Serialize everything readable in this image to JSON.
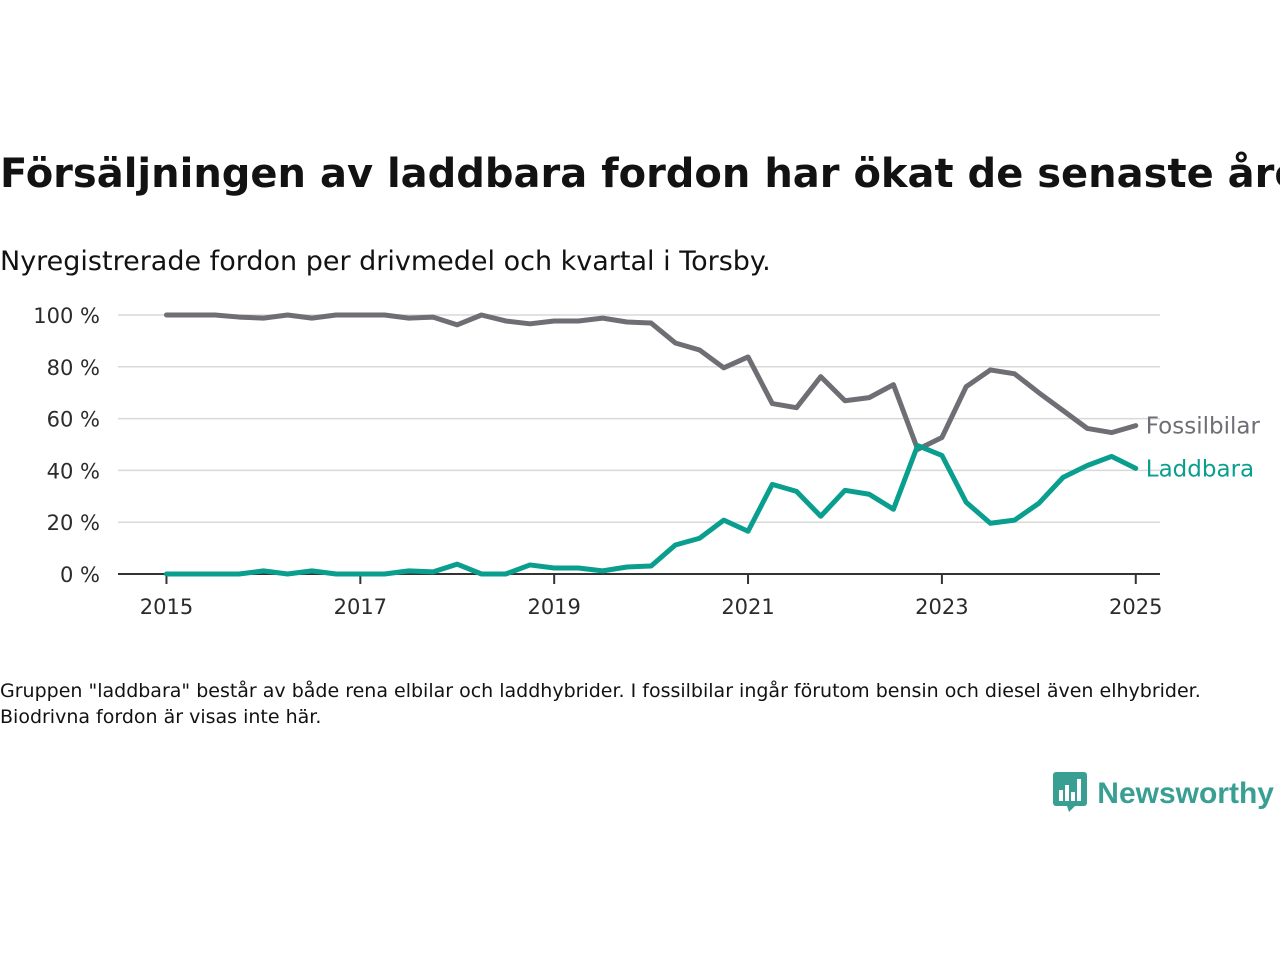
{
  "title": "Försäljningen av laddbara fordon har ökat de senaste åren",
  "subtitle": "Nyregistrerade fordon per drivmedel och kvartal i Torsby.",
  "footnote": "Gruppen \"laddbara\" består av både rena elbilar och laddhybrider. I fossilbilar ingår förutom bensin och diesel även elhybrider. Biodrivna fordon är visas inte här.",
  "brand": {
    "name": "Newsworthy",
    "logo_icon": "bar-chart-speech-bubble-icon",
    "color": "#3a9f93"
  },
  "chart_data": {
    "type": "line",
    "title": "Försäljningen av laddbara fordon har ökat de senaste åren",
    "subtitle": "Nyregistrerade fordon per drivmedel och kvartal i Torsby.",
    "xlabel": "",
    "ylabel": "",
    "x_ticks": [
      "2015",
      "2017",
      "2019",
      "2021",
      "2023",
      "2025"
    ],
    "y_ticks": [
      "0 %",
      "20 %",
      "40 %",
      "60 %",
      "80 %",
      "100 %"
    ],
    "ylim": [
      0,
      100
    ],
    "xlim": [
      "2014-07",
      "2025-04"
    ],
    "grid": "horizontal",
    "legend": "direct labels at line ends",
    "x": [
      "2015-01",
      "2015-04",
      "2015-07",
      "2015-10",
      "2016-01",
      "2016-04",
      "2016-07",
      "2016-10",
      "2017-01",
      "2017-04",
      "2017-07",
      "2017-10",
      "2018-01",
      "2018-04",
      "2018-07",
      "2018-10",
      "2019-01",
      "2019-04",
      "2019-07",
      "2019-10",
      "2020-01",
      "2020-04",
      "2020-07",
      "2020-10",
      "2021-01",
      "2021-04",
      "2021-07",
      "2021-10",
      "2022-01",
      "2022-04",
      "2022-07",
      "2022-10",
      "2023-01",
      "2023-04",
      "2023-07",
      "2023-10",
      "2024-01",
      "2024-04",
      "2024-07",
      "2024-10",
      "2025-01"
    ],
    "series": [
      {
        "name": "Fossilbilar",
        "color": "#6e6e75",
        "values": [
          100,
          100,
          100,
          99.2,
          98.8,
          100,
          98.8,
          100,
          100,
          100,
          98.8,
          99.2,
          96.2,
          100,
          97.7,
          96.6,
          97.7,
          97.7,
          98.8,
          97.3,
          96.9,
          89.2,
          86.5,
          79.6,
          83.8,
          65.8,
          64.2,
          76.2,
          66.9,
          68.1,
          73.1,
          48.1,
          52.7,
          72.3,
          78.8,
          77.3,
          70.0,
          63.1,
          56.2,
          54.6,
          57.3
        ]
      },
      {
        "name": "Laddbara",
        "color": "#0a9e8e",
        "values": [
          0,
          0,
          0,
          0,
          1.2,
          0,
          1.2,
          0,
          0,
          0,
          1.2,
          0.8,
          3.8,
          0,
          0,
          3.5,
          2.3,
          2.3,
          1.2,
          2.7,
          3.1,
          11.2,
          13.8,
          20.8,
          16.5,
          34.6,
          31.9,
          22.3,
          32.3,
          30.8,
          25.0,
          49.6,
          45.8,
          27.7,
          19.6,
          20.8,
          27.3,
          37.3,
          41.9,
          45.4,
          40.8
        ]
      }
    ]
  }
}
